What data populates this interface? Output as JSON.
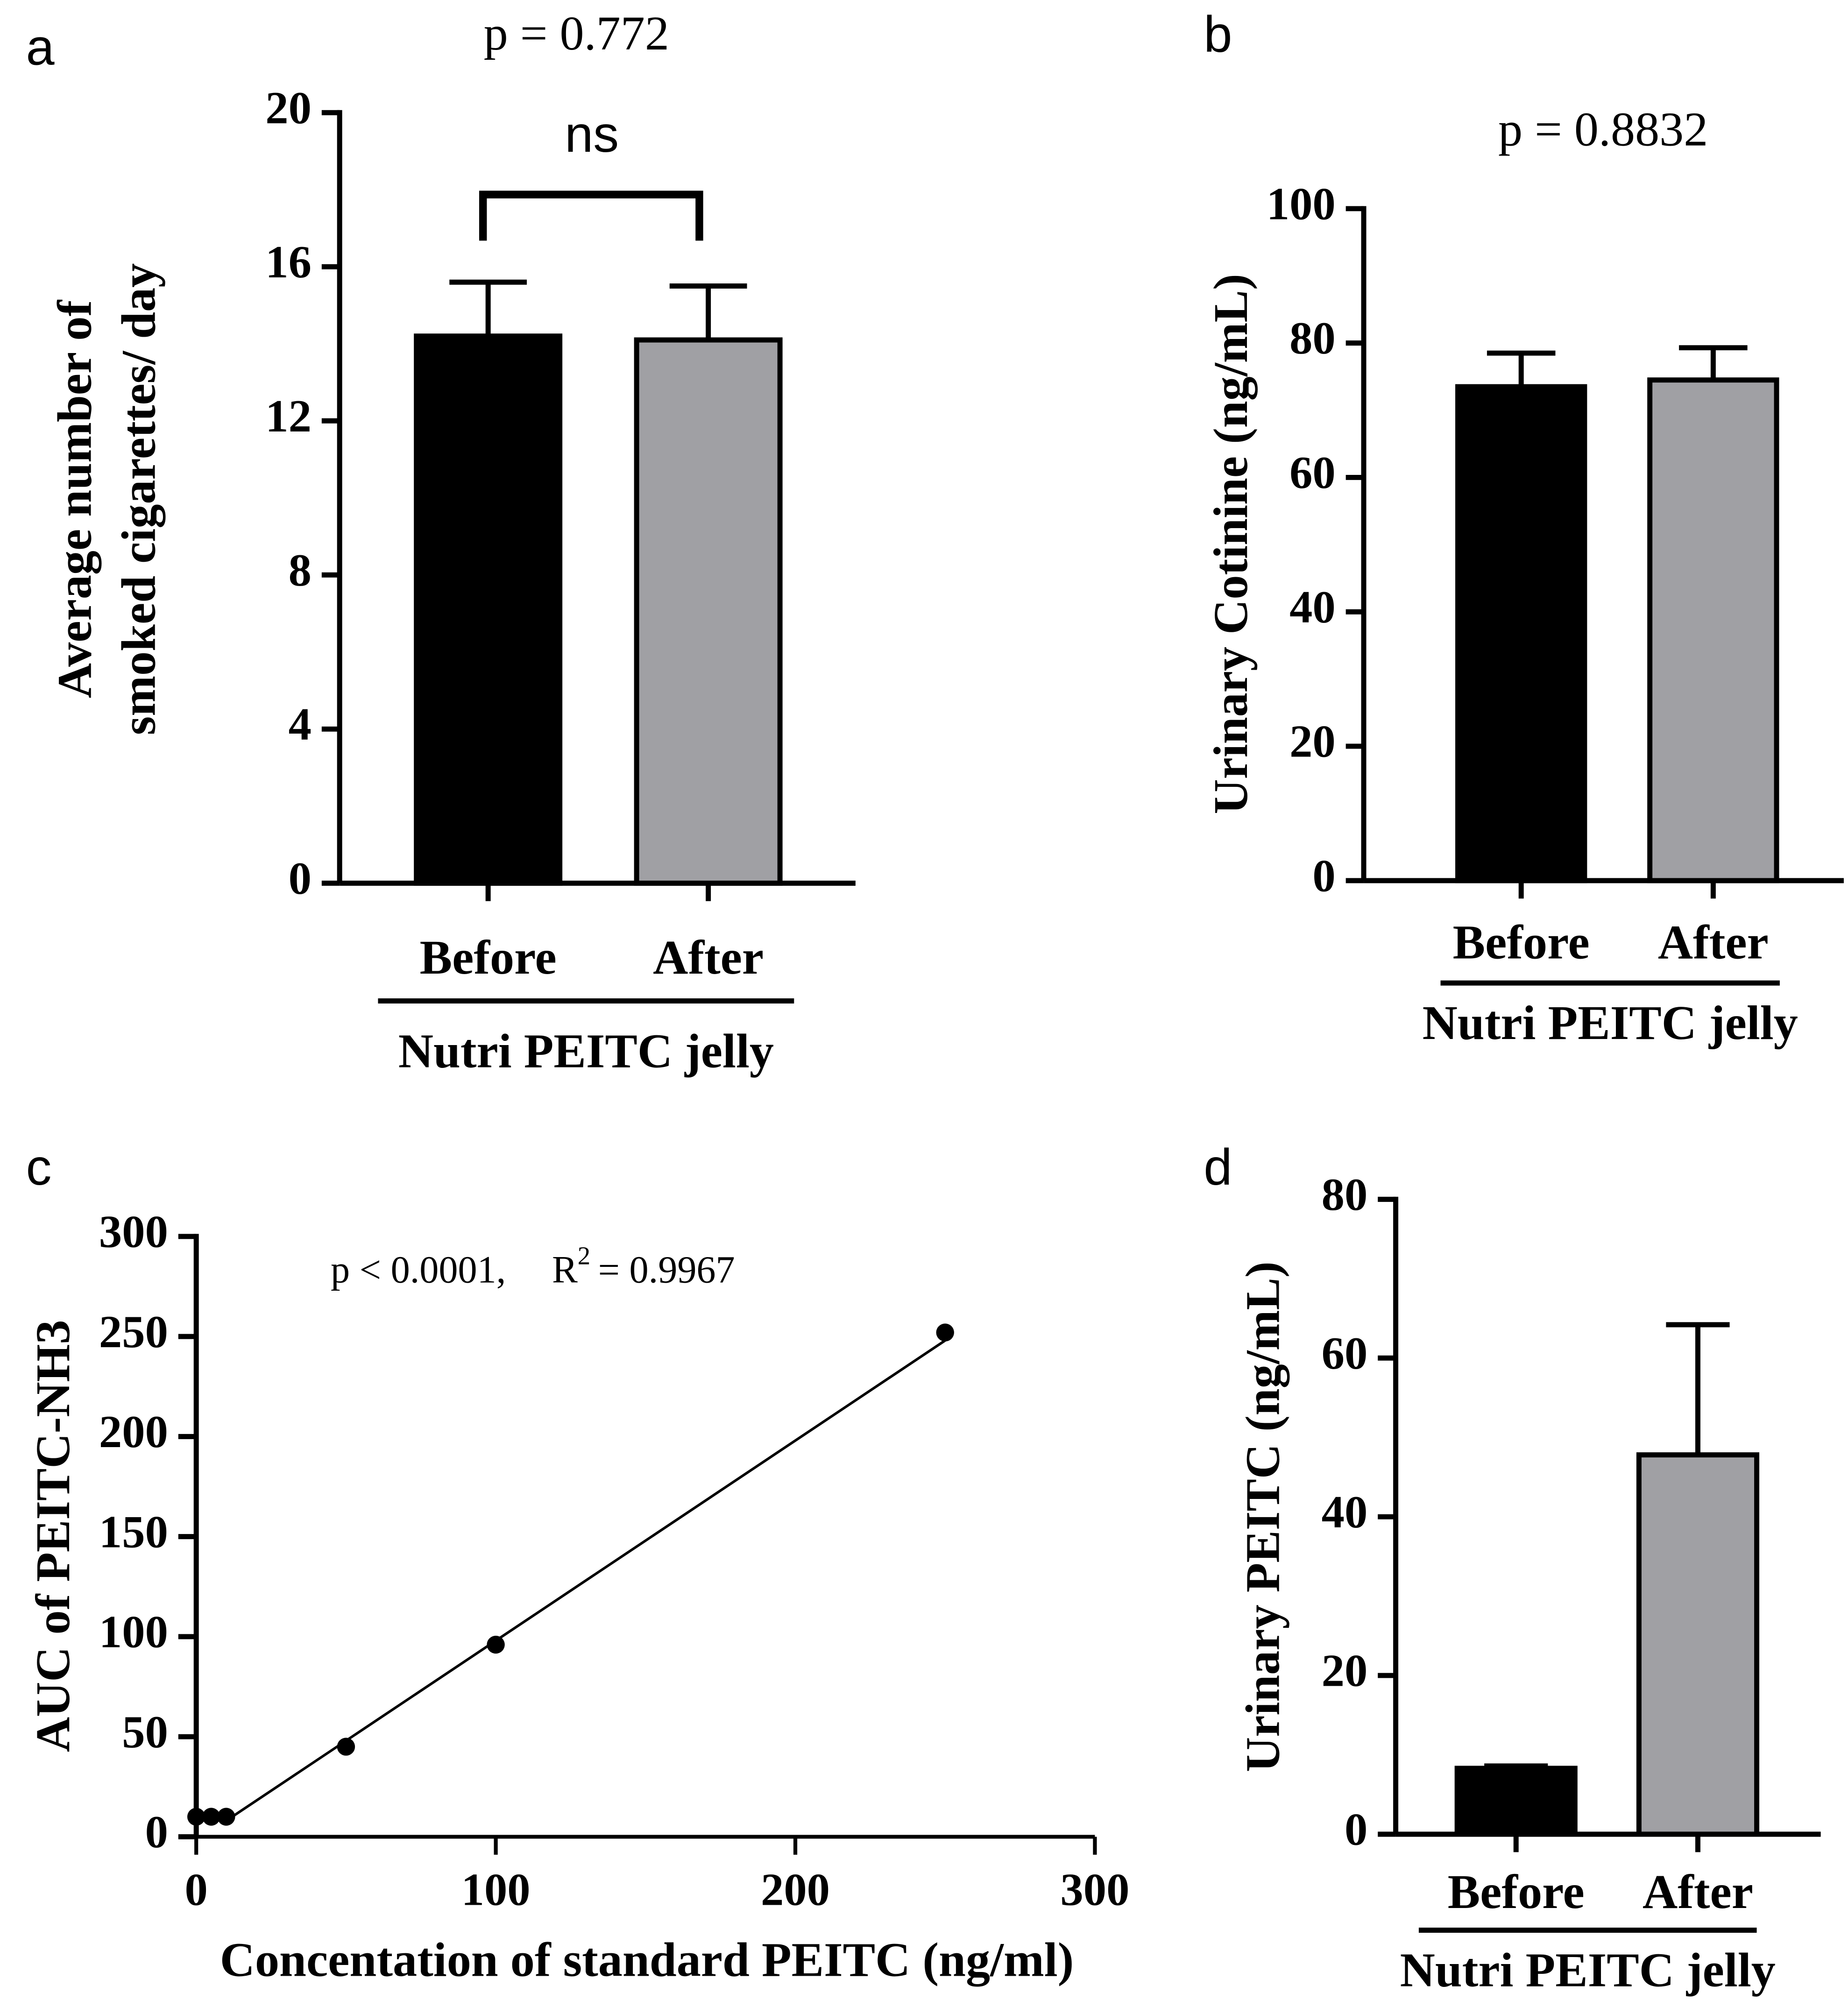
{
  "chart_data": [
    {
      "type": "bar",
      "panel": "a",
      "title": "p = 0.772",
      "annotation": "ns",
      "y_label": [
        "Average number of",
        "smoked cigarettes/ day"
      ],
      "group_label": "Nutri PEITC jelly",
      "categories": [
        "Before",
        "After"
      ],
      "values": [
        14.2,
        14.1
      ],
      "errors": [
        1.4,
        1.4
      ],
      "colors": [
        "#000000",
        "#a0a0a4"
      ],
      "ylim": [
        0,
        20
      ],
      "yticks": [
        0,
        4,
        8,
        12,
        16,
        20
      ]
    },
    {
      "type": "bar",
      "panel": "b",
      "title": "p = 0.8832",
      "y_label": [
        "Urinary Cotinine (ng/mL)"
      ],
      "group_label": "Nutri PEITC jelly",
      "categories": [
        "Before",
        "After"
      ],
      "values": [
        73.5,
        74.5
      ],
      "errors": [
        5,
        4.8
      ],
      "colors": [
        "#000000",
        "#a0a0a4"
      ],
      "ylim": [
        0,
        100
      ],
      "yticks": [
        0,
        20,
        40,
        60,
        80,
        100
      ]
    },
    {
      "type": "scatter",
      "panel": "c",
      "annotation": {
        "p": "p < 0.0001,",
        "r": "R",
        "sup": "2",
        "r2": "= 0.9967"
      },
      "x_label": "Concentation of standard PEITC (ng/ml)",
      "y_label": [
        "AUC of PEITC-NH3"
      ],
      "x": [
        0,
        5,
        10,
        50,
        100,
        250
      ],
      "y": [
        10,
        10,
        10,
        45,
        96,
        252
      ],
      "fit_line": {
        "x": [
          10,
          250
        ],
        "y": [
          8,
          248
        ]
      },
      "color": "#000000",
      "xlim": [
        0,
        300
      ],
      "xticks": [
        0,
        100,
        200,
        300
      ],
      "ylim": [
        0,
        300
      ],
      "yticks": [
        0,
        50,
        100,
        150,
        200,
        250,
        300
      ]
    },
    {
      "type": "bar",
      "panel": "d",
      "y_label": [
        "Urinary PEITC (ng/mL)"
      ],
      "group_label": "Nutri PEITC jelly",
      "categories": [
        "Before",
        "After"
      ],
      "values": [
        8.3,
        47.8
      ],
      "errors": [
        0.3,
        16.4
      ],
      "colors": [
        "#000000",
        "#a0a0a4"
      ],
      "ylim": [
        0,
        80
      ],
      "yticks": [
        0,
        20,
        40,
        60,
        80
      ]
    }
  ]
}
